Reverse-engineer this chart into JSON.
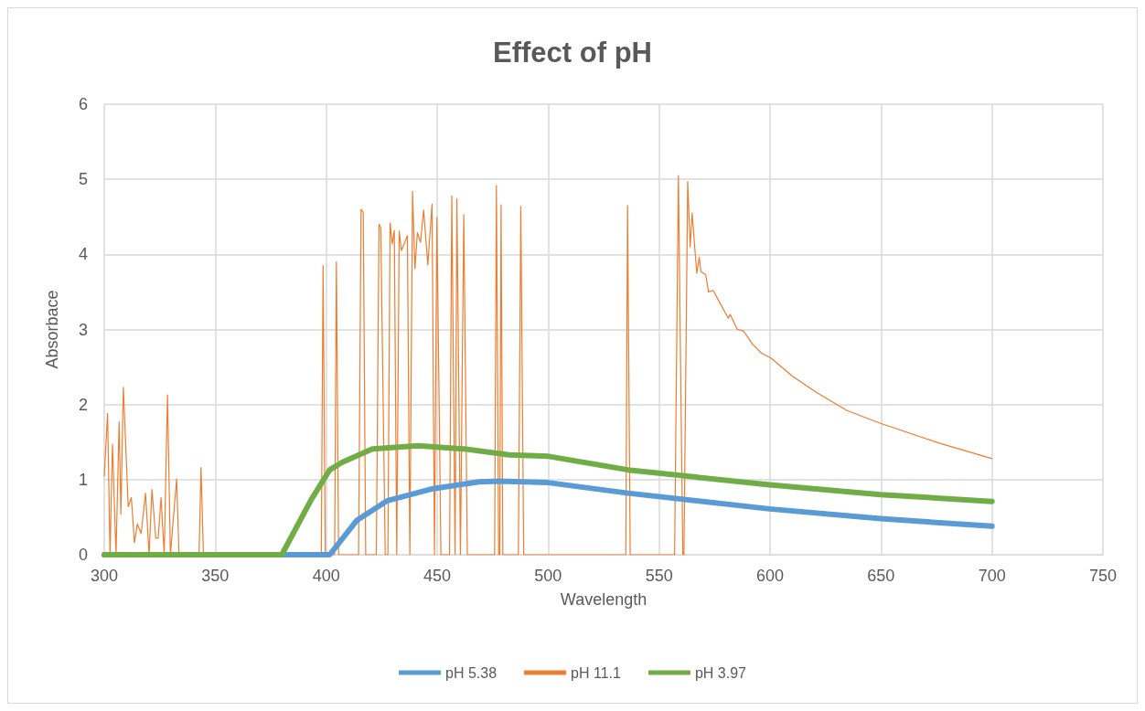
{
  "chart_data": {
    "type": "line",
    "title": "Effect of pH",
    "xlabel": "Wavelength",
    "ylabel": "Absorbace",
    "xlim": [
      300,
      750
    ],
    "xticks": [
      300,
      350,
      400,
      450,
      500,
      550,
      600,
      650,
      700,
      750
    ],
    "ylim": [
      0,
      6
    ],
    "yticks": [
      0,
      1,
      2,
      3,
      4,
      5,
      6
    ],
    "grid": true,
    "legend": "bottom",
    "marker": "none",
    "line_style": "solid",
    "series": [
      {
        "name": "pH 5.38",
        "color": "#5b9bd5",
        "x": [
          300,
          401.6,
          413.9,
          427.6,
          448.2,
          468.8,
          478,
          500,
          536,
          599.8,
          649.8,
          700
        ],
        "values": [
          0,
          0,
          0.46,
          0.72,
          0.88,
          0.97,
          0.98,
          0.96,
          0.82,
          0.61,
          0.48,
          0.38
        ]
      },
      {
        "name": "pH 11.1",
        "color": "#ed7d31",
        "x": [
          300,
          301.5,
          302.6,
          303.7,
          305.3,
          306.7,
          307.5,
          308.6,
          310.8,
          312.2,
          313.6,
          314.9,
          316.6,
          318.6,
          320.2,
          321.5,
          323.2,
          324.3,
          325.6,
          327,
          328.5,
          329.8,
          332.6,
          333.7,
          342.7,
          343.6,
          344.7,
          397.8,
          398.6,
          399.6,
          403.8,
          404.6,
          405.6,
          414.6,
          415.7,
          416.7,
          417.8,
          422.6,
          423.8,
          424.6,
          426.6,
          427.8,
          428.8,
          429.8,
          430.7,
          431.8,
          432.9,
          433.9,
          435.3,
          436.6,
          437.7,
          438.9,
          440,
          441.1,
          442.5,
          443.9,
          445.8,
          447.7,
          448.8,
          449.9,
          451.7,
          455.6,
          456.6,
          458.1,
          458.9,
          460.5,
          462,
          463.6,
          475.9,
          476.7,
          477.7,
          478.2,
          478.8,
          479.6,
          486.6,
          487.7,
          489,
          535,
          535.8,
          537,
          557,
          558.7,
          560.7,
          561.2,
          562.9,
          564,
          564.9,
          566.1,
          567,
          568.1,
          568.9,
          571,
          572.3,
          574.4,
          577.1,
          581.2,
          582,
          585.3,
          588,
          592.2,
          596.3,
          600.4,
          610,
          621,
          634.7,
          649.8,
          675.9,
          700
        ],
        "values": [
          1.05,
          1.88,
          0,
          1.47,
          0,
          1.77,
          0.54,
          2.23,
          0.64,
          0.76,
          0.16,
          0.41,
          0.28,
          0.82,
          0,
          0.87,
          0.22,
          0.22,
          0.76,
          0,
          2.13,
          0,
          1.01,
          0,
          0,
          1.16,
          0,
          0,
          3.85,
          0,
          0,
          3.9,
          0,
          0,
          4.6,
          4.56,
          0,
          0,
          4.4,
          4.36,
          0,
          0,
          4.42,
          4.14,
          4.32,
          0,
          4.31,
          4.05,
          4.15,
          4.25,
          0,
          4.84,
          3.81,
          4.29,
          4.16,
          4.59,
          3.86,
          4.67,
          0,
          4.49,
          0,
          0,
          4.78,
          0,
          4.74,
          0,
          4.53,
          0,
          0,
          4.92,
          0,
          0,
          4.66,
          0,
          0,
          4.64,
          0,
          0,
          4.65,
          0,
          0,
          5.05,
          0,
          0,
          4.97,
          4.1,
          4.55,
          4.08,
          3.75,
          3.96,
          3.77,
          3.73,
          3.5,
          3.52,
          3.37,
          3.15,
          3.2,
          3.0,
          2.98,
          2.8,
          2.68,
          2.62,
          2.38,
          2.16,
          1.92,
          1.75,
          1.49,
          1.28
        ]
      },
      {
        "name": "pH 3.97",
        "color": "#70ad47",
        "x": [
          300,
          380,
          393.4,
          401.6,
          407.1,
          420.8,
          441.4,
          461.9,
          482.5,
          500.3,
          536,
          599.8,
          649.8,
          700
        ],
        "values": [
          0,
          0,
          0.74,
          1.13,
          1.23,
          1.41,
          1.45,
          1.41,
          1.33,
          1.31,
          1.13,
          0.93,
          0.8,
          0.71
        ]
      }
    ]
  }
}
